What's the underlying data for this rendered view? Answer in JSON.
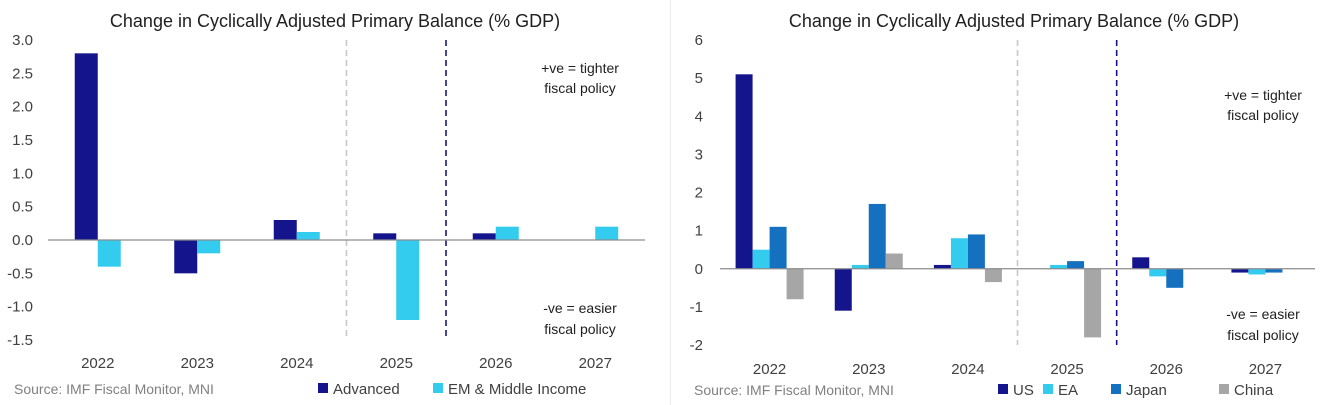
{
  "charts": [
    {
      "id": "left",
      "chart_data": {
        "type": "bar",
        "title": "Change in Cyclically Adjusted Primary Balance (% GDP)",
        "categories": [
          "2022",
          "2023",
          "2024",
          "2025",
          "2026",
          "2027"
        ],
        "series": [
          {
            "name": "Advanced",
            "color": "#14148c",
            "values": [
              2.8,
              -0.5,
              0.3,
              0.1,
              0.1,
              0.0
            ]
          },
          {
            "name": "EM & Middle Income",
            "color": "#33ccee",
            "values": [
              -0.4,
              -0.2,
              0.12,
              -1.2,
              0.2,
              0.2
            ]
          }
        ],
        "yticks": [
          "3.0",
          "2.5",
          "2.0",
          "1.5",
          "1.0",
          "0.5",
          "0.0",
          "-0.5",
          "-1.0",
          "-1.5"
        ],
        "ylim": [
          -1.5,
          3.0
        ],
        "annotation_top": [
          "+ve = tighter",
          "fiscal policy"
        ],
        "annotation_bottom": [
          "-ve = easier",
          "fiscal policy"
        ],
        "source": "Source: IMF Fiscal Monitor, MNI",
        "vlines": [
          {
            "after_category_index": 2,
            "color": "#c8c8c8"
          },
          {
            "after_category_index": 3,
            "color": "#14148c"
          }
        ]
      }
    },
    {
      "id": "right",
      "chart_data": {
        "type": "bar",
        "title": "Change in Cyclically Adjusted Primary Balance (% GDP)",
        "categories": [
          "2022",
          "2023",
          "2024",
          "2025",
          "2026",
          "2027"
        ],
        "series": [
          {
            "name": "US",
            "color": "#14148c",
            "values": [
              5.1,
              -1.1,
              0.1,
              0.0,
              0.3,
              -0.1
            ]
          },
          {
            "name": "EA",
            "color": "#33ccee",
            "values": [
              0.5,
              0.1,
              0.8,
              0.1,
              -0.2,
              -0.15
            ]
          },
          {
            "name": "Japan",
            "color": "#1670c0",
            "values": [
              1.1,
              1.7,
              0.9,
              0.2,
              -0.5,
              -0.1
            ]
          },
          {
            "name": "China",
            "color": "#a6a6a6",
            "values": [
              -0.8,
              0.4,
              -0.35,
              -1.8,
              0.0,
              0.0
            ]
          }
        ],
        "yticks": [
          "6",
          "5",
          "4",
          "3",
          "2",
          "1",
          "0",
          "-1",
          "-2"
        ],
        "ylim": [
          -2,
          6
        ],
        "annotation_top": [
          "+ve = tighter",
          "fiscal policy"
        ],
        "annotation_bottom": [
          "-ve = easier",
          "fiscal policy"
        ],
        "source": "Source: IMF Fiscal Monitor, MNI",
        "vlines": [
          {
            "after_category_index": 2,
            "color": "#c8c8c8"
          },
          {
            "after_category_index": 3,
            "color": "#14148c"
          }
        ]
      }
    }
  ]
}
